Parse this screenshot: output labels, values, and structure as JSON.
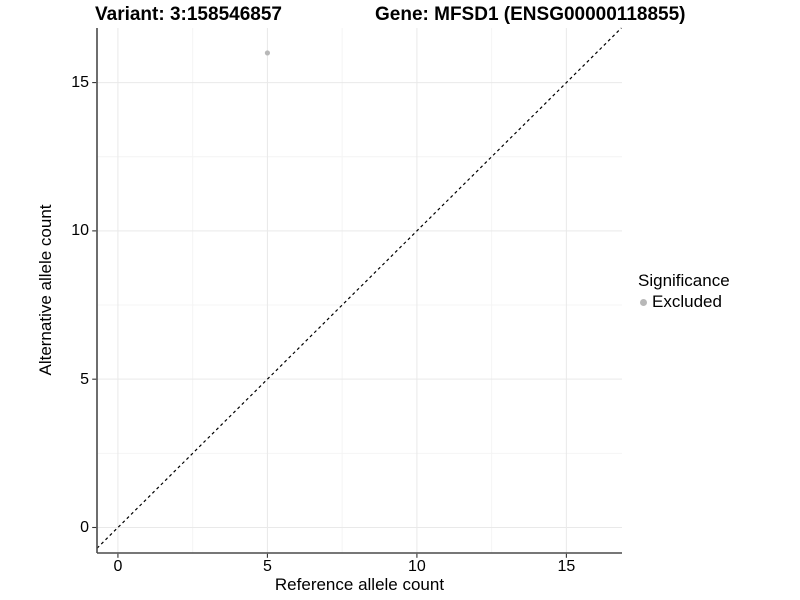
{
  "colors": {
    "background": "#ffffff",
    "point": "#b8b8b8",
    "grid_major": "#e9e9e9",
    "grid_minor": "#f4f4f4",
    "axis_line": "#4a4a4a",
    "tick_mark": "#333333",
    "reference_line": "#000000",
    "text": "#000000"
  },
  "chart_data": {
    "type": "scatter",
    "title_left": "Variant: 3:158546857",
    "title_right": "Gene: MFSD1 (ENSG00000118855)",
    "xlabel": "Reference allele count",
    "ylabel": "Alternative allele count",
    "xlim": [
      -0.7,
      16.86
    ],
    "ylim": [
      -0.86,
      16.84
    ],
    "x_ticks": [
      0,
      5,
      10,
      15
    ],
    "y_ticks": [
      0,
      5,
      10,
      15
    ],
    "x_minor_gridlines": [
      2.5,
      7.5,
      12.5
    ],
    "y_minor_gridlines": [
      2.5,
      7.5,
      12.5
    ],
    "grid": true,
    "points": [
      {
        "x": 5,
        "y": 16,
        "series": "Excluded"
      }
    ],
    "reference_line": {
      "kind": "identity",
      "slope": 1,
      "intercept": 0,
      "style": "dashed"
    },
    "legend": {
      "title": "Significance",
      "position": "right",
      "entries": [
        {
          "label": "Excluded",
          "marker": "circle"
        }
      ]
    }
  }
}
